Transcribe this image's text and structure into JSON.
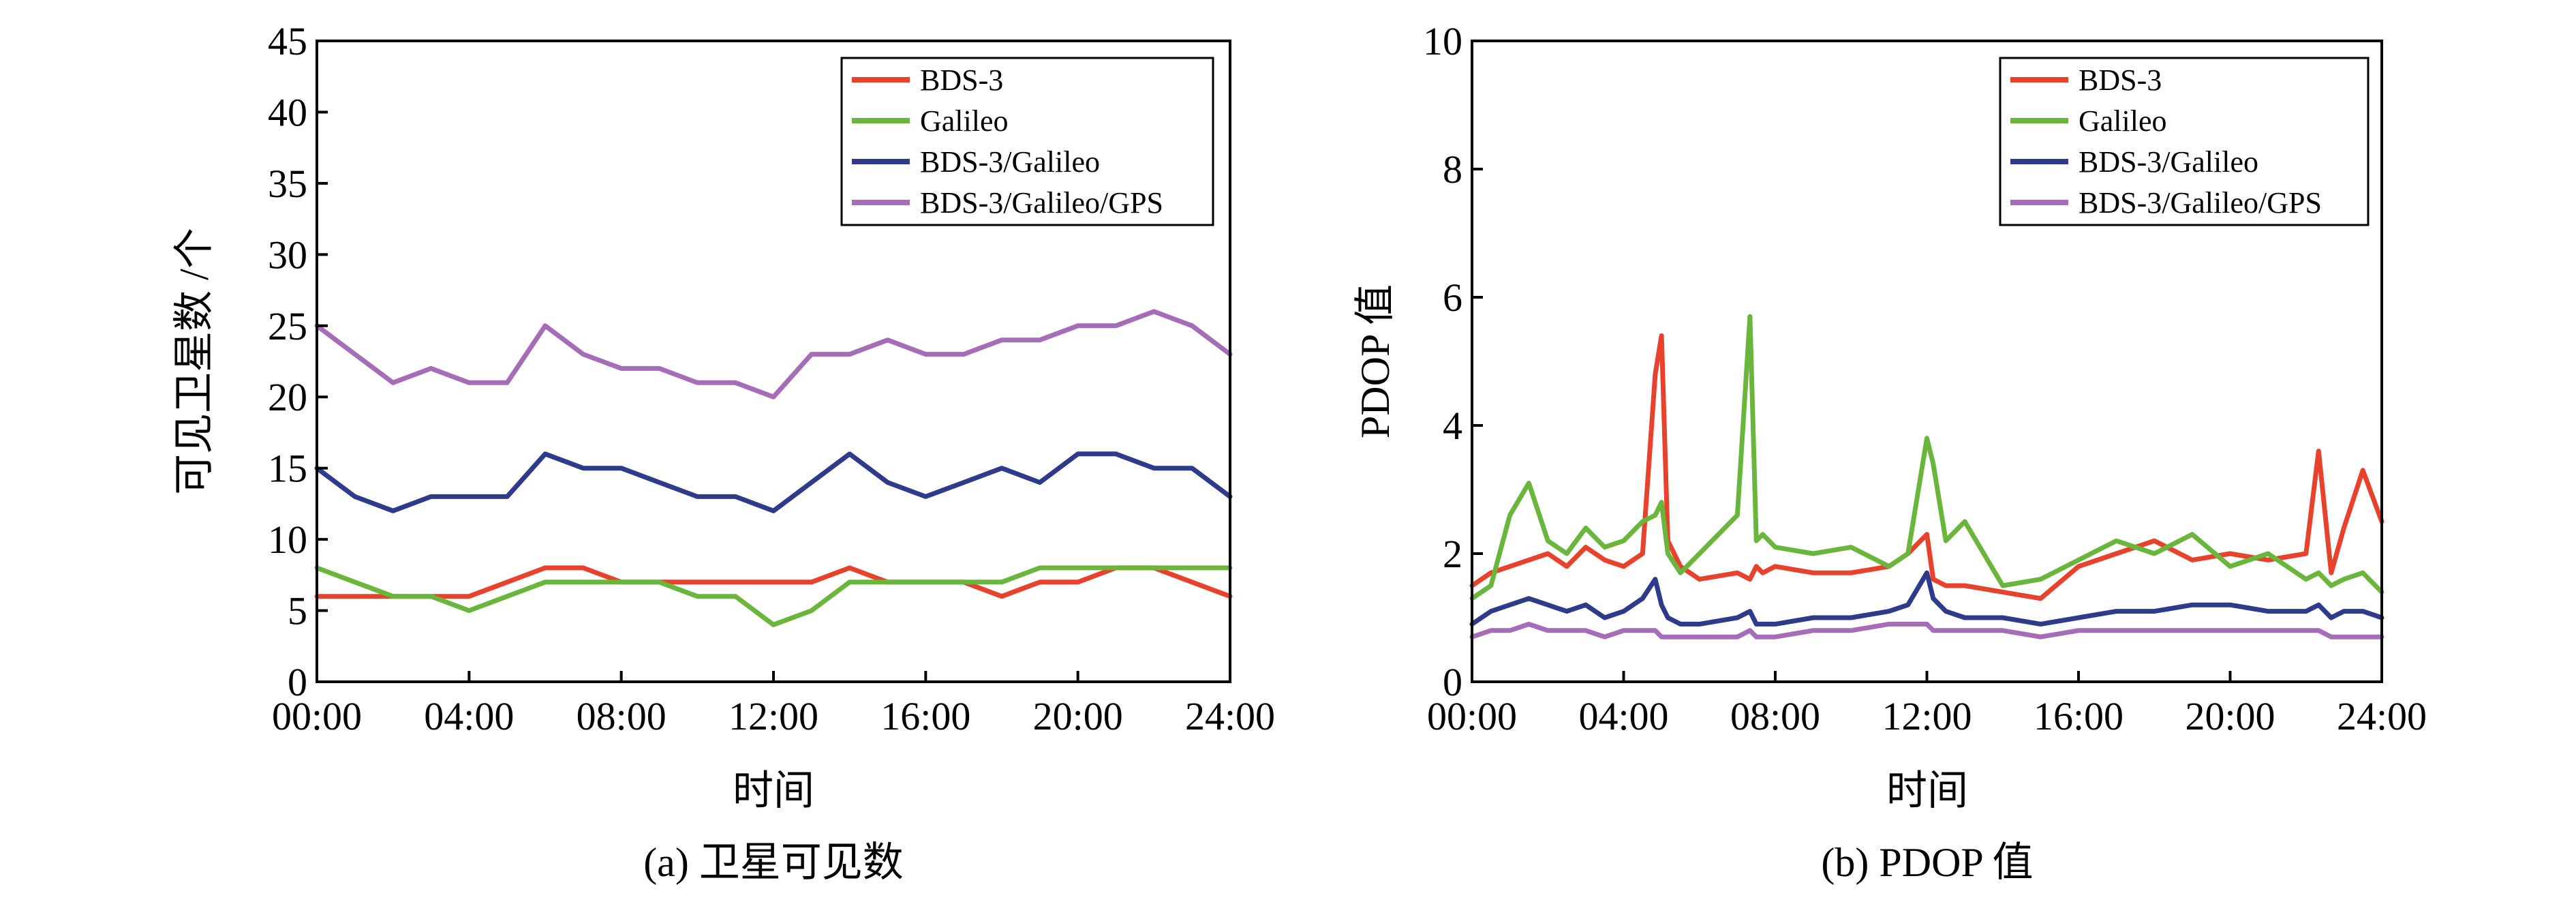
{
  "colors": {
    "BDS-3": "#e8412c",
    "Galileo": "#6ab63c",
    "BDS-3/Galileo": "#2e3a8a",
    "BDS-3/Galileo/GPS": "#a56cb8",
    "axis": "#000000"
  },
  "chart_data": [
    {
      "type": "line",
      "caption": "(a) 卫星可见数",
      "title": "",
      "xlabel": "时间",
      "ylabel": "可见卫星数 /个",
      "xlim": [
        "00:00",
        "24:00"
      ],
      "ylim": [
        0,
        45
      ],
      "xticks": [
        "00:00",
        "04:00",
        "08:00",
        "12:00",
        "16:00",
        "20:00",
        "24:00"
      ],
      "yticks": [
        "0",
        "5",
        "10",
        "15",
        "20",
        "25",
        "30",
        "35",
        "40",
        "45"
      ],
      "legend": "top-right",
      "grid": false,
      "x": [
        "00:00",
        "01:00",
        "02:00",
        "03:00",
        "04:00",
        "05:00",
        "06:00",
        "07:00",
        "08:00",
        "09:00",
        "10:00",
        "11:00",
        "12:00",
        "13:00",
        "14:00",
        "15:00",
        "16:00",
        "17:00",
        "18:00",
        "19:00",
        "20:00",
        "21:00",
        "22:00",
        "23:00",
        "24:00"
      ],
      "series": [
        {
          "name": "BDS-3",
          "values": [
            6,
            6,
            6,
            6,
            6,
            7,
            8,
            8,
            7,
            7,
            7,
            7,
            7,
            7,
            8,
            7,
            7,
            7,
            6,
            7,
            7,
            8,
            8,
            7,
            6
          ]
        },
        {
          "name": "Galileo",
          "values": [
            8,
            7,
            6,
            6,
            5,
            6,
            7,
            7,
            7,
            7,
            6,
            6,
            4,
            5,
            7,
            7,
            7,
            7,
            7,
            8,
            8,
            8,
            8,
            8,
            8
          ]
        },
        {
          "name": "BDS-3/Galileo",
          "values": [
            15,
            13,
            12,
            13,
            13,
            13,
            16,
            15,
            15,
            14,
            13,
            13,
            12,
            14,
            16,
            14,
            13,
            14,
            15,
            14,
            16,
            16,
            15,
            15,
            13
          ]
        },
        {
          "name": "BDS-3/Galileo/GPS",
          "values": [
            25,
            23,
            21,
            22,
            21,
            21,
            25,
            23,
            22,
            22,
            21,
            21,
            20,
            23,
            23,
            24,
            23,
            23,
            24,
            24,
            25,
            25,
            26,
            25,
            23
          ]
        }
      ]
    },
    {
      "type": "line",
      "caption": "(b) PDOP 值",
      "title": "",
      "xlabel": "时间",
      "ylabel": "PDOP 值",
      "xlim": [
        "00:00",
        "24:00"
      ],
      "ylim": [
        0,
        10
      ],
      "xticks": [
        "00:00",
        "04:00",
        "08:00",
        "12:00",
        "16:00",
        "20:00",
        "24:00"
      ],
      "yticks": [
        "0",
        "2",
        "4",
        "6",
        "8",
        "10"
      ],
      "legend": "top-right",
      "grid": false,
      "x": [
        "00:00",
        "00:30",
        "01:00",
        "01:30",
        "02:00",
        "02:30",
        "03:00",
        "03:30",
        "04:00",
        "04:30",
        "04:50",
        "05:00",
        "05:10",
        "05:30",
        "06:00",
        "07:00",
        "07:20",
        "07:30",
        "07:40",
        "08:00",
        "09:00",
        "10:00",
        "11:00",
        "11:30",
        "12:00",
        "12:10",
        "12:30",
        "13:00",
        "14:00",
        "15:00",
        "16:00",
        "17:00",
        "18:00",
        "19:00",
        "20:00",
        "21:00",
        "22:00",
        "22:20",
        "22:40",
        "23:00",
        "23:30",
        "24:00"
      ],
      "series": [
        {
          "name": "BDS-3",
          "values": [
            1.5,
            1.7,
            1.8,
            1.9,
            2.0,
            1.8,
            2.1,
            1.9,
            1.8,
            2.0,
            4.8,
            5.4,
            2.2,
            1.8,
            1.6,
            1.7,
            1.6,
            1.8,
            1.7,
            1.8,
            1.7,
            1.7,
            1.8,
            2.0,
            2.3,
            1.6,
            1.5,
            1.5,
            1.4,
            1.3,
            1.8,
            2.0,
            2.2,
            1.9,
            2.0,
            1.9,
            2.0,
            3.6,
            1.7,
            2.4,
            3.3,
            2.5
          ]
        },
        {
          "name": "Galileo",
          "values": [
            1.3,
            1.5,
            2.6,
            3.1,
            2.2,
            2.0,
            2.4,
            2.1,
            2.2,
            2.5,
            2.6,
            2.8,
            2.0,
            1.7,
            2.0,
            2.6,
            5.7,
            2.2,
            2.3,
            2.1,
            2.0,
            2.1,
            1.8,
            2.0,
            3.8,
            3.4,
            2.2,
            2.5,
            1.5,
            1.6,
            1.9,
            2.2,
            2.0,
            2.3,
            1.8,
            2.0,
            1.6,
            1.7,
            1.5,
            1.6,
            1.7,
            1.4
          ]
        },
        {
          "name": "BDS-3/Galileo",
          "values": [
            0.9,
            1.1,
            1.2,
            1.3,
            1.2,
            1.1,
            1.2,
            1.0,
            1.1,
            1.3,
            1.6,
            1.2,
            1.0,
            0.9,
            0.9,
            1.0,
            1.1,
            0.9,
            0.9,
            0.9,
            1.0,
            1.0,
            1.1,
            1.2,
            1.7,
            1.3,
            1.1,
            1.0,
            1.0,
            0.9,
            1.0,
            1.1,
            1.1,
            1.2,
            1.2,
            1.1,
            1.1,
            1.2,
            1.0,
            1.1,
            1.1,
            1.0
          ]
        },
        {
          "name": "BDS-3/Galileo/GPS",
          "values": [
            0.7,
            0.8,
            0.8,
            0.9,
            0.8,
            0.8,
            0.8,
            0.7,
            0.8,
            0.8,
            0.8,
            0.7,
            0.7,
            0.7,
            0.7,
            0.7,
            0.8,
            0.7,
            0.7,
            0.7,
            0.8,
            0.8,
            0.9,
            0.9,
            0.9,
            0.8,
            0.8,
            0.8,
            0.8,
            0.7,
            0.8,
            0.8,
            0.8,
            0.8,
            0.8,
            0.8,
            0.8,
            0.8,
            0.7,
            0.7,
            0.7,
            0.7
          ]
        }
      ]
    }
  ]
}
